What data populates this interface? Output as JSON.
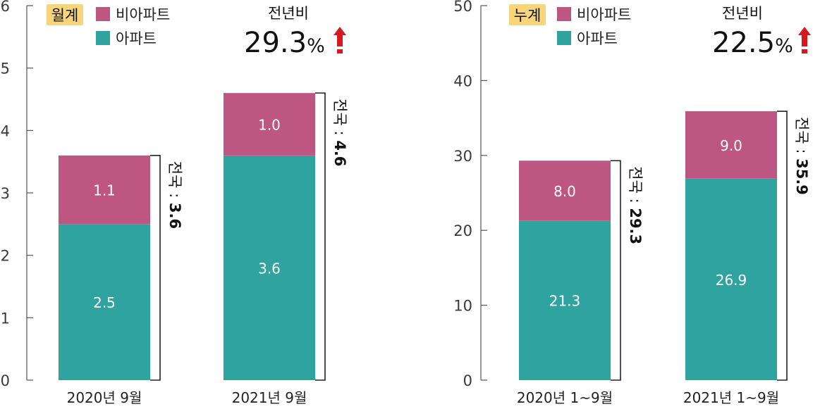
{
  "colors": {
    "apartment": "#2fa3a0",
    "non_apartment": "#bd5681",
    "badge": "#f8d57a",
    "arrow": "#d7191f",
    "axis": "#555555"
  },
  "chart_data": [
    {
      "type": "bar",
      "stacked": true,
      "badge": "월계",
      "categories": [
        "2020년 9월",
        "2021년 9월"
      ],
      "series": [
        {
          "name": "아파트",
          "values": [
            2.5,
            3.6
          ],
          "color_key": "apartment"
        },
        {
          "name": "비아파트",
          "values": [
            1.1,
            1.0
          ],
          "color_key": "non_apartment"
        }
      ],
      "value_labels": {
        "아파트": [
          "2.5",
          "3.6"
        ],
        "비아파트": [
          "1.1",
          "1.0"
        ]
      },
      "totals": [
        "3.6",
        "4.6"
      ],
      "total_prefix": "전국 : ",
      "yoy_label": "전년비",
      "yoy_value": "29.3",
      "yoy_unit": "%",
      "ylim": [
        0,
        6
      ],
      "yticks": [
        0,
        1,
        2,
        3,
        4,
        5,
        6
      ],
      "legend": "top-left"
    },
    {
      "type": "bar",
      "stacked": true,
      "badge": "누계",
      "categories": [
        "2020년 1~9월",
        "2021년 1~9월"
      ],
      "series": [
        {
          "name": "아파트",
          "values": [
            21.3,
            26.9
          ],
          "color_key": "apartment"
        },
        {
          "name": "비아파트",
          "values": [
            8.0,
            9.0
          ],
          "color_key": "non_apartment"
        }
      ],
      "value_labels": {
        "아파트": [
          "21.3",
          "26.9"
        ],
        "비아파트": [
          "8.0",
          "9.0"
        ]
      },
      "totals": [
        "29.3",
        "35.9"
      ],
      "total_prefix": "전국 : ",
      "yoy_label": "전년비",
      "yoy_value": "22.5",
      "yoy_unit": "%",
      "ylim": [
        0,
        50
      ],
      "yticks": [
        0,
        10,
        20,
        30,
        40,
        50
      ],
      "legend": "top-left"
    }
  ]
}
